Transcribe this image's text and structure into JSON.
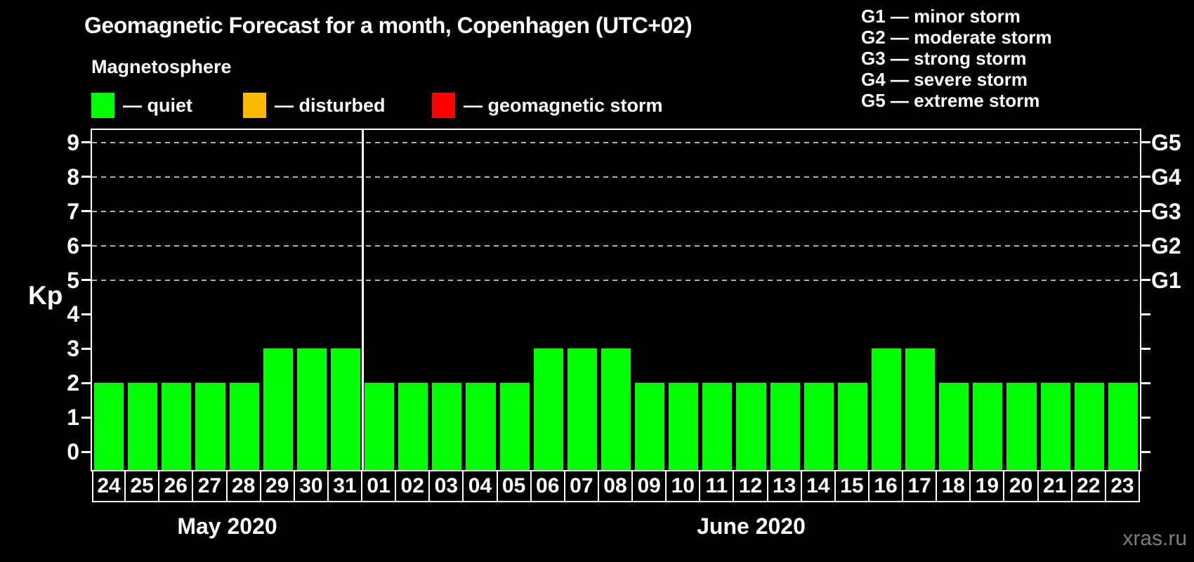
{
  "title": "Geomagnetic Forecast for a month, Copenhagen (UTC+02)",
  "subtitle": "Magnetosphere",
  "legend": {
    "items": [
      {
        "name": "quiet",
        "label": "— quiet",
        "color": "#00ff00"
      },
      {
        "name": "disturbed",
        "label": "— disturbed",
        "color": "#fbba00"
      },
      {
        "name": "storm",
        "label": "— geomagnetic storm",
        "color": "#ff0000"
      }
    ]
  },
  "g_legend": [
    "G1 — minor storm",
    "G2 — moderate storm",
    "G3 — strong storm",
    "G4 — severe storm",
    "G5 — extreme storm"
  ],
  "watermark": {
    "text": "xras.ru",
    "color": "#7c7c7c"
  },
  "chart_data": {
    "type": "bar",
    "title": "Geomagnetic Forecast for a month, Copenhagen (UTC+02)",
    "ylabel": "Kp",
    "ylim": [
      -0.5,
      9.4
    ],
    "yticks": [
      0,
      1,
      2,
      3,
      4,
      5,
      6,
      7,
      8,
      9
    ],
    "grid": "dashed horizontal lines at Kp 5-9 (G1-G5 levels)",
    "legend_position": "top",
    "bar_color": "#00ff00",
    "right_axis": {
      "labels": [
        "G1",
        "G2",
        "G3",
        "G4",
        "G5"
      ],
      "levels": [
        5,
        6,
        7,
        8,
        9
      ]
    },
    "months": [
      {
        "label": "May 2020",
        "days": [
          "24",
          "25",
          "26",
          "27",
          "28",
          "29",
          "30",
          "31"
        ],
        "values": [
          2,
          2,
          2,
          2,
          2,
          3,
          3,
          3
        ]
      },
      {
        "label": "June 2020",
        "days": [
          "01",
          "02",
          "03",
          "04",
          "05",
          "06",
          "07",
          "08",
          "09",
          "10",
          "11",
          "12",
          "13",
          "14",
          "15",
          "16",
          "17",
          "18",
          "19",
          "20",
          "21",
          "22",
          "23"
        ],
        "values": [
          2,
          2,
          2,
          2,
          2,
          3,
          3,
          3,
          2,
          2,
          2,
          2,
          2,
          2,
          2,
          3,
          3,
          2,
          2,
          2,
          2,
          2,
          2
        ]
      }
    ]
  }
}
